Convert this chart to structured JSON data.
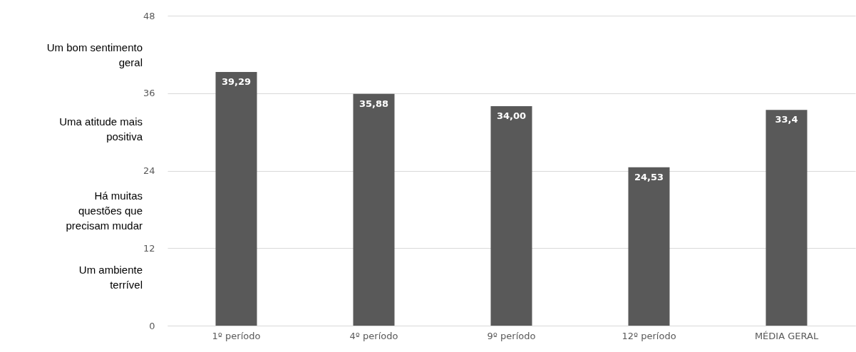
{
  "chart_data": {
    "type": "bar",
    "categories": [
      "1º período",
      "4º período",
      "9º período",
      "12º período",
      "MÉDIA GERAL"
    ],
    "values": [
      39.29,
      35.88,
      34.0,
      24.53,
      33.4
    ],
    "value_labels": [
      "39,29",
      "35,88",
      "34,00",
      "24,53",
      "33,4"
    ],
    "color": "#595959",
    "ylim": [
      0,
      48
    ],
    "yticks": [
      0,
      12,
      24,
      36,
      48
    ],
    "grid": "y",
    "annotations": [
      "Um bom sentimento geral",
      "Uma atitude mais positiva",
      "Há muitas questões que precisam mudar",
      "Um ambiente terrível"
    ]
  }
}
